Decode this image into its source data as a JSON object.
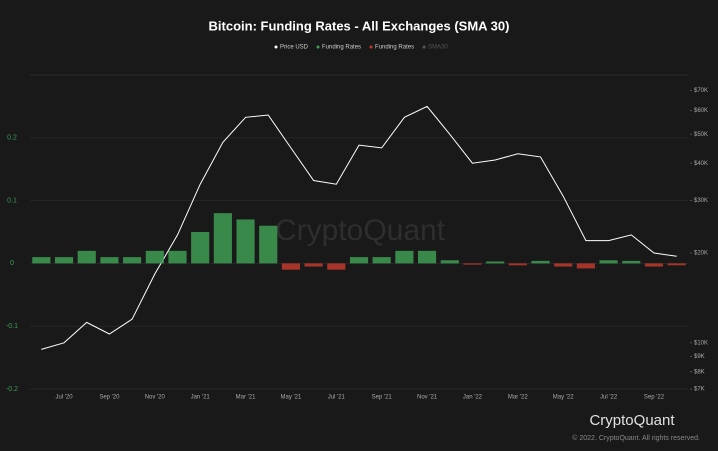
{
  "chart_data": {
    "type": "bar_line",
    "title": "Bitcoin: Funding Rates - All Exchanges (SMA 30)",
    "watermark": "CryptoQuant",
    "footer": "© 2022. CryptoQuant. All rights reserved.",
    "categories": [
      null,
      "Jul '20",
      null,
      "Sep '20",
      null,
      "Nov '20",
      null,
      "Jan '21",
      null,
      "Mar '21",
      null,
      "May '21",
      null,
      "Jul '21",
      null,
      "Sep '21",
      null,
      "Nov '21",
      null,
      "Jan '22",
      null,
      "Mar '22",
      null,
      "May '22",
      null,
      "Jul '22",
      null,
      "Sep '22",
      null
    ],
    "series": [
      {
        "name": "Price USD",
        "color": "#ffffff",
        "axis": "y2",
        "kind": "line",
        "values": [
          9500,
          10000,
          11700,
          10700,
          12000,
          17000,
          23000,
          34000,
          47000,
          57000,
          58000,
          45000,
          35000,
          34000,
          46000,
          45000,
          57000,
          62000,
          50000,
          40000,
          41000,
          43000,
          42000,
          31000,
          22000,
          22000,
          23000,
          20000,
          19500
        ]
      },
      {
        "name": "Funding Rates",
        "color": "#3f9e55",
        "negative_color": "#c0392b",
        "kind": "bar",
        "values": [
          0.01,
          0.01,
          0.02,
          0.01,
          0.01,
          0.02,
          0.02,
          0.05,
          0.08,
          0.07,
          0.06,
          -0.01,
          -0.005,
          -0.01,
          0.01,
          0.01,
          0.02,
          0.02,
          0.005,
          -0.002,
          0.003,
          -0.003,
          0.004,
          -0.005,
          -0.008,
          0.005,
          0.004,
          -0.005,
          -0.003
        ]
      }
    ],
    "inactive_legend": {
      "name": "SMA30",
      "color": "#555555"
    },
    "ylim": [
      -0.2,
      0.3
    ],
    "yticks": [
      -0.2,
      -0.1,
      0,
      0.1,
      0.2
    ],
    "y2lim": [
      7000,
      79000
    ],
    "y2_log": true,
    "y2ticks": [
      {
        "value": 7000,
        "label": "$7K"
      },
      {
        "value": 8000,
        "label": "$8K"
      },
      {
        "value": 9000,
        "label": "$9K"
      },
      {
        "value": 10000,
        "label": "$10K"
      },
      {
        "value": 20000,
        "label": "$20K"
      },
      {
        "value": 30000,
        "label": "$30K"
      },
      {
        "value": 40000,
        "label": "$40K"
      },
      {
        "value": 50000,
        "label": "$50K"
      },
      {
        "value": 60000,
        "label": "$60K"
      },
      {
        "value": 70000,
        "label": "$70K"
      }
    ],
    "grid": true
  }
}
